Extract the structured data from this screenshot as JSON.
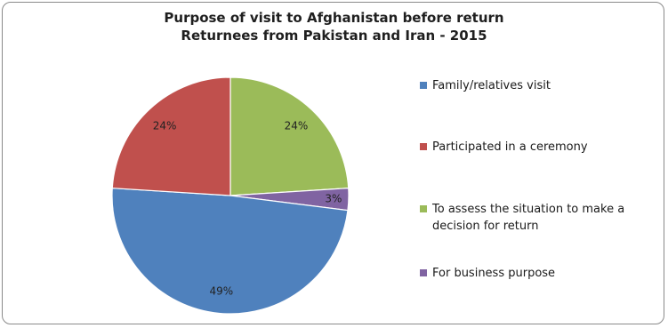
{
  "chart_data": {
    "type": "pie",
    "title": "Purpose of visit to Afghanistan before return",
    "subtitle": "Returnees from Pakistan and Iran - 2015",
    "legend_position": "right",
    "slices": [
      {
        "label": "Family/relatives visit",
        "value": 49,
        "display": "49%",
        "color": "#4f81bd"
      },
      {
        "label": "Participated in a ceremony",
        "value": 24,
        "display": "24%",
        "color": "#c0504d"
      },
      {
        "label": "To assess the situation to make a decision for return",
        "value": 24,
        "display": "24%",
        "color": "#9bbb59"
      },
      {
        "label": "For business purpose",
        "value": 3,
        "display": "3%",
        "color": "#8064a2"
      }
    ]
  }
}
